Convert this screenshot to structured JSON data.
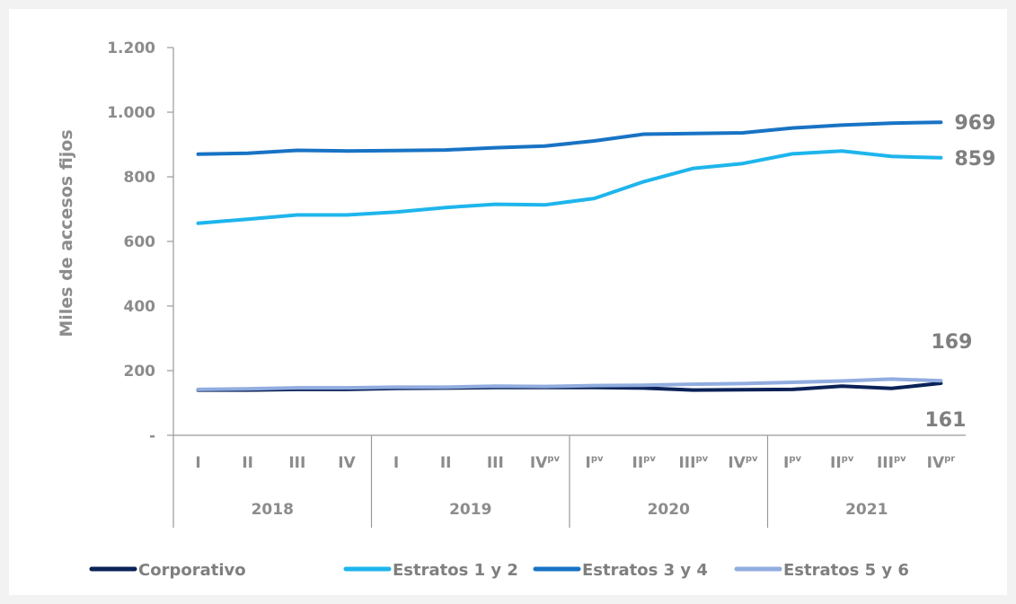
{
  "chart_data": {
    "type": "line",
    "ylabel": "Miles de accesos fijos",
    "ylim": [
      0,
      1200
    ],
    "yticks": [
      {
        "value": 0,
        "label": "-"
      },
      {
        "value": 200,
        "label": "200"
      },
      {
        "value": 400,
        "label": "400"
      },
      {
        "value": 600,
        "label": "600"
      },
      {
        "value": 800,
        "label": "800"
      },
      {
        "value": 1000,
        "label": "1.000"
      },
      {
        "value": 1200,
        "label": "1.200"
      }
    ],
    "categories": [
      {
        "main": "I",
        "sup": ""
      },
      {
        "main": "II",
        "sup": ""
      },
      {
        "main": "III",
        "sup": ""
      },
      {
        "main": "IV",
        "sup": ""
      },
      {
        "main": "I",
        "sup": ""
      },
      {
        "main": "II",
        "sup": ""
      },
      {
        "main": "III",
        "sup": ""
      },
      {
        "main": "IV",
        "sup": "pv"
      },
      {
        "main": "I",
        "sup": "pv"
      },
      {
        "main": "II",
        "sup": "pv"
      },
      {
        "main": "III",
        "sup": "pv"
      },
      {
        "main": "IV",
        "sup": "pv"
      },
      {
        "main": "I",
        "sup": "pv"
      },
      {
        "main": "II",
        "sup": "pv"
      },
      {
        "main": "III",
        "sup": "pv"
      },
      {
        "main": "IV",
        "sup": "pr"
      }
    ],
    "groups": [
      {
        "label": "2018",
        "span": 4
      },
      {
        "label": "2019",
        "span": 4
      },
      {
        "label": "2020",
        "span": 4
      },
      {
        "label": "2021",
        "span": 4
      }
    ],
    "series": [
      {
        "name": "Corporativo",
        "color": "#0a2257",
        "values": [
          140,
          140,
          142,
          142,
          145,
          146,
          148,
          148,
          148,
          146,
          140,
          141,
          142,
          152,
          145,
          161
        ],
        "end_label": "161"
      },
      {
        "name": "Estratos 1 y 2",
        "color": "#1eb5ec",
        "values": [
          656,
          669,
          682,
          682,
          691,
          705,
          715,
          713,
          733,
          785,
          826,
          841,
          871,
          880,
          863,
          859
        ],
        "end_label": "859"
      },
      {
        "name": "Estratos 3 y 4",
        "color": "#1873c4",
        "values": [
          870,
          873,
          882,
          880,
          881,
          883,
          890,
          895,
          911,
          932,
          934,
          936,
          951,
          960,
          966,
          969
        ],
        "end_label": "969"
      },
      {
        "name": "Estratos 5 y 6",
        "color": "#91acdf",
        "values": [
          142,
          144,
          147,
          147,
          149,
          149,
          152,
          151,
          154,
          155,
          158,
          160,
          164,
          168,
          174,
          169
        ],
        "end_label": "169"
      }
    ],
    "legend_position": "bottom",
    "grid": false
  }
}
